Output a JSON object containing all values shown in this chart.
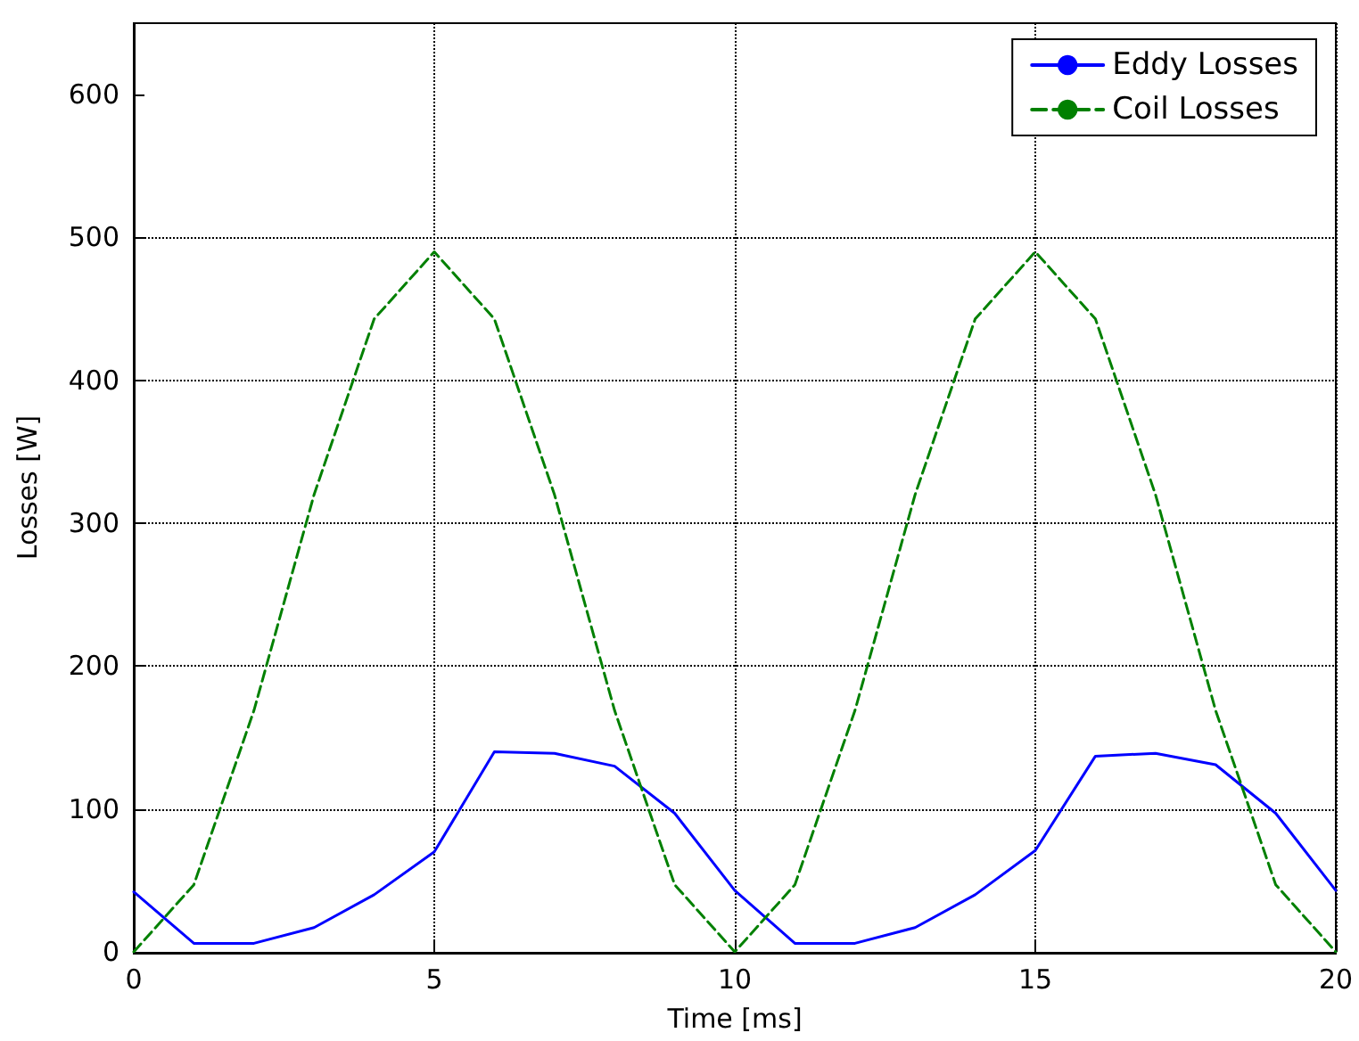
{
  "chart_data": {
    "type": "line",
    "xlabel": "Time [ms]",
    "ylabel": "Losses [W]",
    "x": [
      0,
      1,
      2,
      3,
      4,
      5,
      6,
      7,
      8,
      9,
      10,
      11,
      12,
      13,
      14,
      15,
      16,
      17,
      18,
      19,
      20
    ],
    "series": [
      {
        "name": "Eddy Losses",
        "color": "#0000ff",
        "line_style": "solid",
        "values": [
          42,
          6,
          6,
          17,
          40,
          70,
          140,
          139,
          130,
          97,
          43,
          6,
          6,
          17,
          40,
          71,
          137,
          139,
          131,
          97,
          43
        ]
      },
      {
        "name": "Coil Losses",
        "color": "#008000",
        "line_style": "dashed",
        "values": [
          0,
          47,
          169,
          320,
          443,
          490,
          443,
          320,
          169,
          47,
          0,
          47,
          169,
          320,
          443,
          490,
          443,
          320,
          169,
          47,
          0
        ]
      }
    ],
    "xlim": [
      0,
      20
    ],
    "xticks": [
      0,
      5,
      10,
      15,
      20
    ],
    "ylim": [
      0,
      650
    ],
    "yticks": [
      0,
      100,
      200,
      300,
      400,
      500,
      600
    ],
    "grid": true,
    "legend": "top right",
    "marker": "none"
  }
}
